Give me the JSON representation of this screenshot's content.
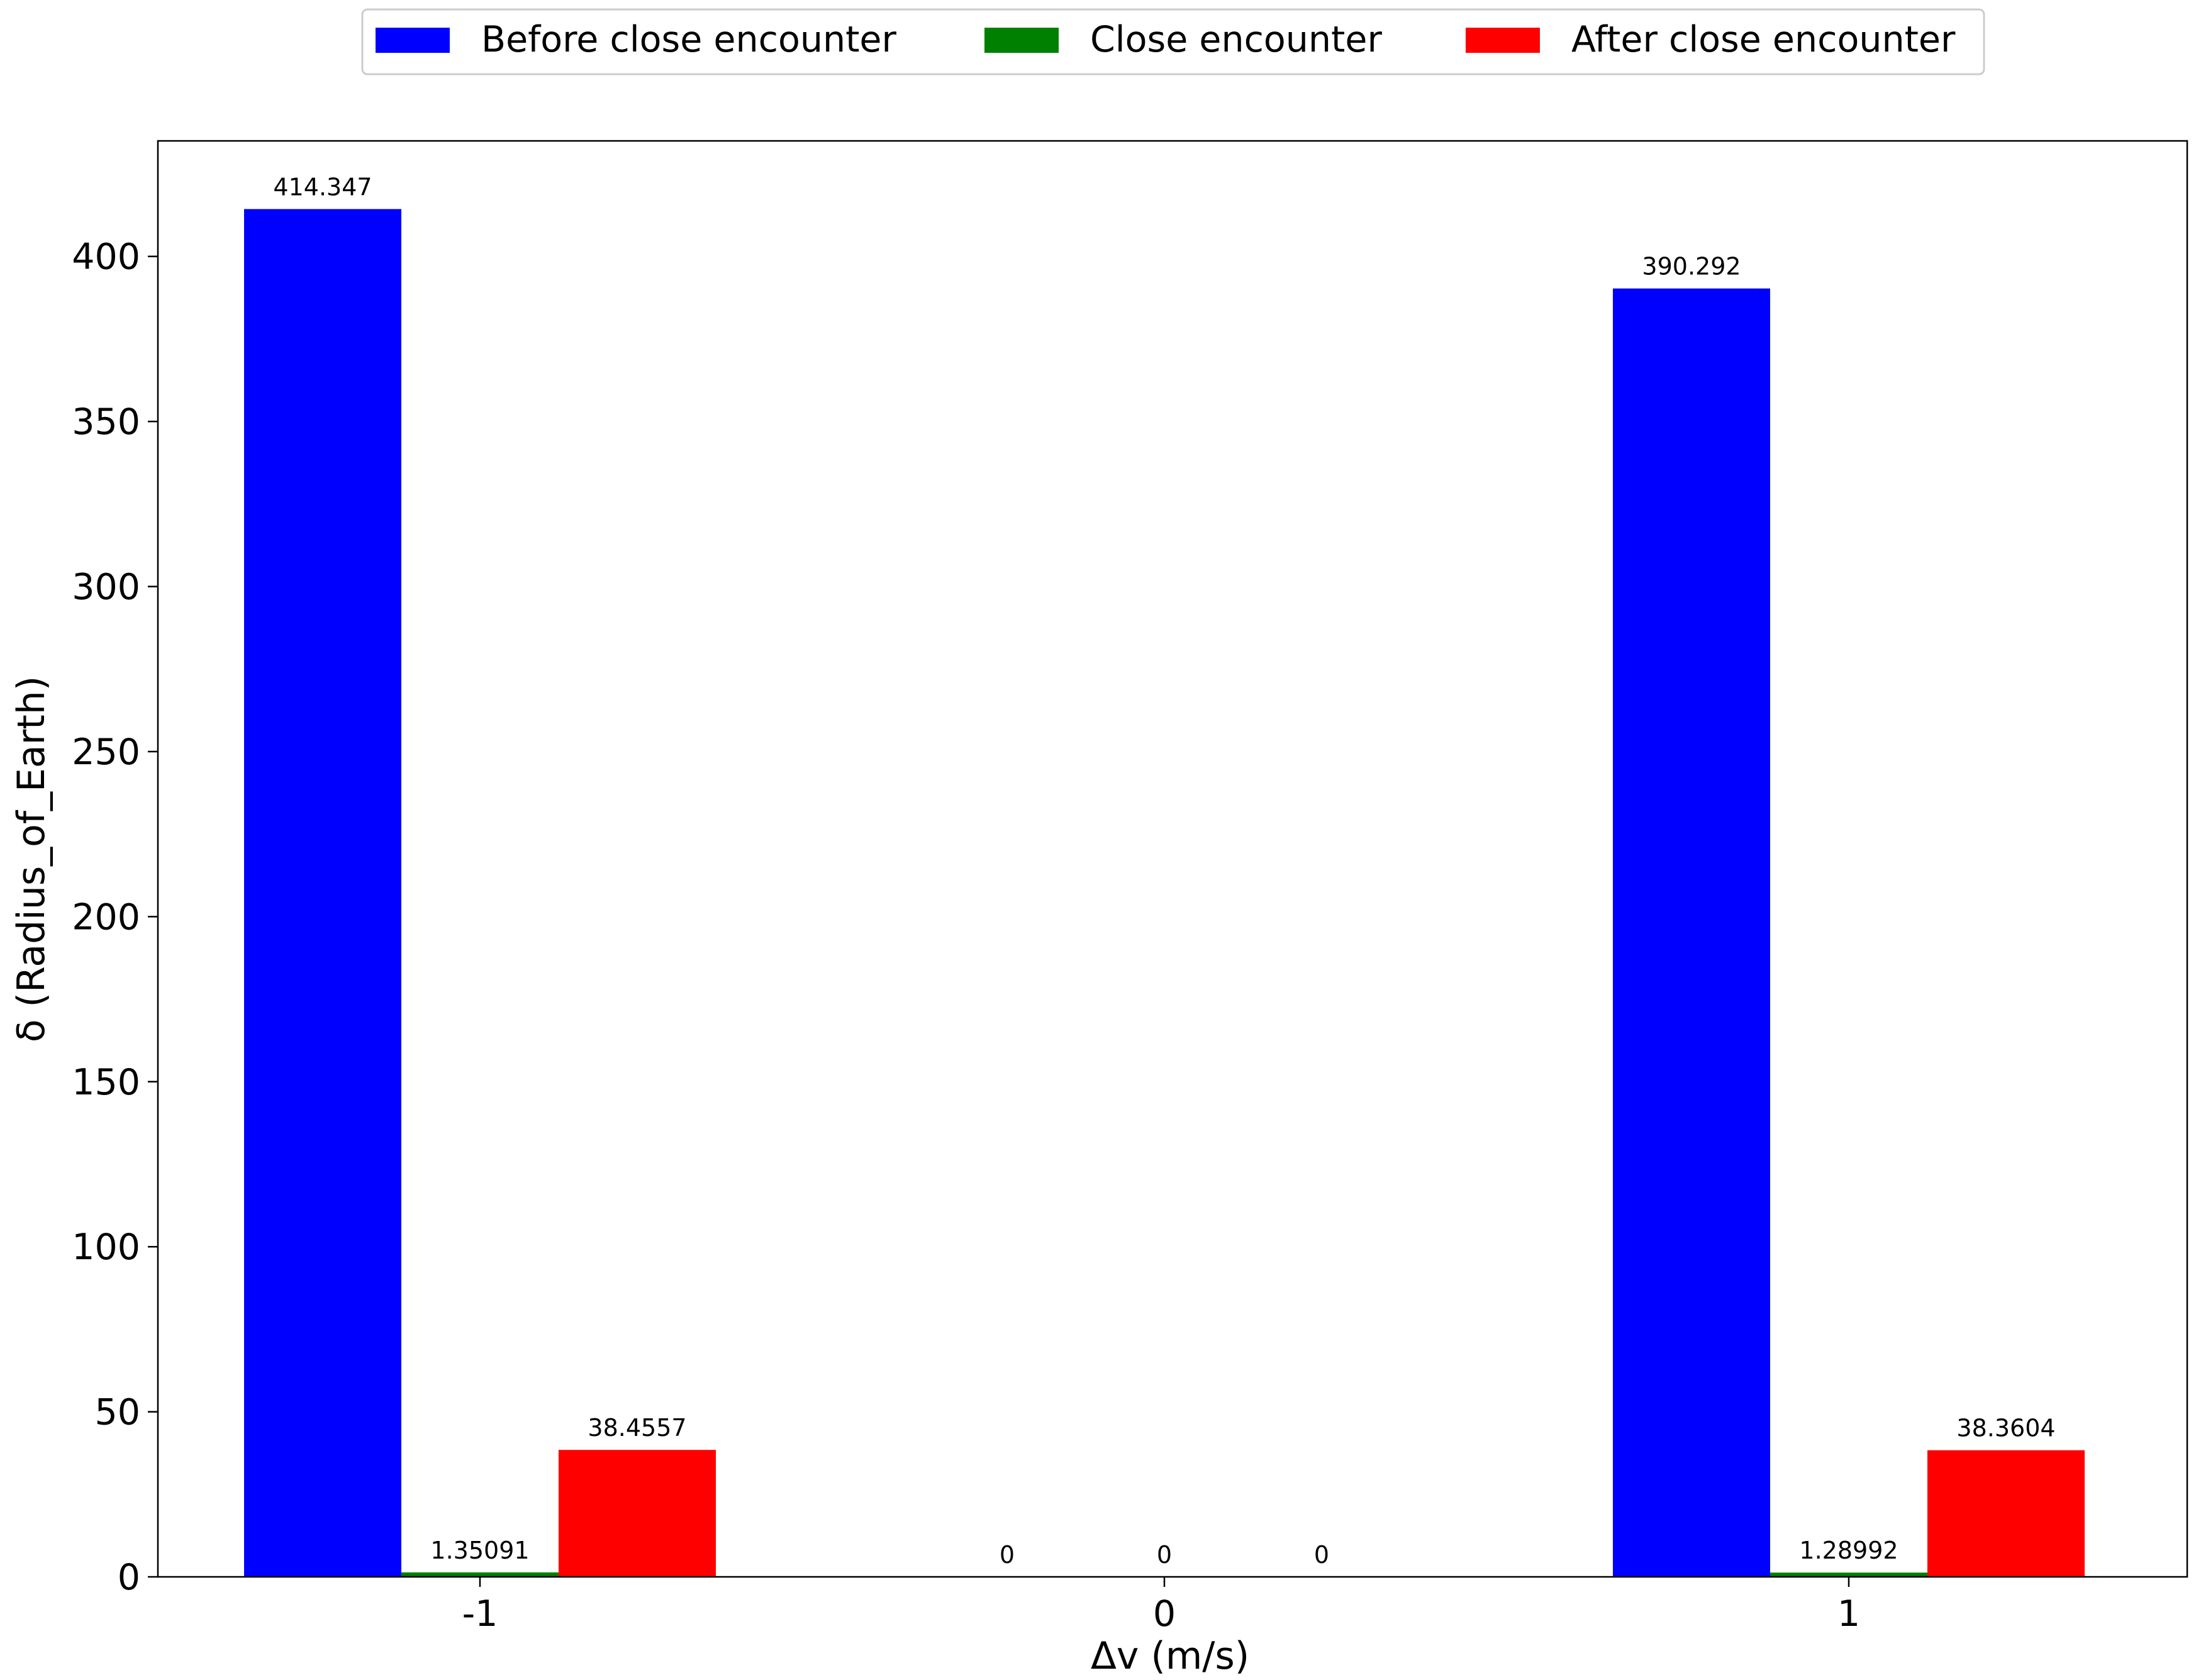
{
  "chart_data": {
    "type": "bar",
    "title": "",
    "xlabel": "Δv (m/s)",
    "ylabel": "δ (Radius_of_Earth)",
    "categories": [
      "-1",
      "0",
      "1"
    ],
    "series": [
      {
        "name": "Before close encounter",
        "color": "#0000ff",
        "values": [
          414.347,
          0,
          390.292
        ],
        "labels": [
          "414.347",
          "0",
          "390.292"
        ]
      },
      {
        "name": "Close encounter",
        "color": "#008000",
        "values": [
          1.35091,
          0,
          1.28992
        ],
        "labels": [
          "1.35091",
          "0",
          "1.28992"
        ]
      },
      {
        "name": "After close encounter",
        "color": "#ff0000",
        "values": [
          38.4557,
          0,
          38.3604
        ],
        "labels": [
          "38.4557",
          "0",
          "38.3604"
        ]
      }
    ],
    "ylim": [
      0,
      435
    ],
    "yticks": [
      0,
      50,
      100,
      150,
      200,
      250,
      300,
      350,
      400
    ],
    "grid": false,
    "legend_position": "top-center"
  }
}
